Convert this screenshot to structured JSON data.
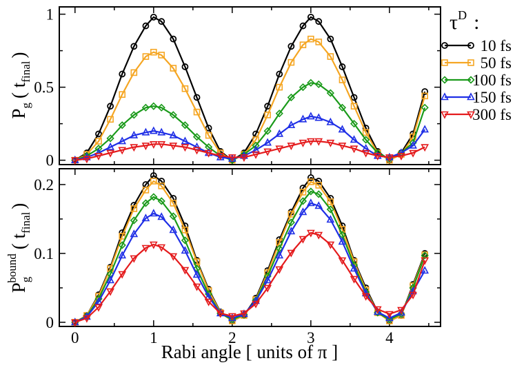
{
  "chart_data": [
    {
      "type": "line",
      "panel": "top",
      "ylabel": {
        "main": "P",
        "sub": "g",
        "paren_open": "( t",
        "paren_sub": "final",
        "paren_close": ")"
      },
      "xlim": [
        -0.2,
        4.65
      ],
      "ylim": [
        -0.03,
        1.05
      ],
      "yticks": [
        0,
        0.5,
        1
      ],
      "ytick_labels": [
        "0",
        "0.5",
        "1"
      ],
      "x": [
        0,
        0.15,
        0.3,
        0.45,
        0.6,
        0.75,
        0.9,
        1.0,
        1.1,
        1.25,
        1.4,
        1.55,
        1.7,
        1.85,
        2.0,
        2.15,
        2.3,
        2.45,
        2.6,
        2.75,
        2.9,
        3.0,
        3.1,
        3.25,
        3.4,
        3.55,
        3.7,
        3.85,
        4.0,
        4.15,
        4.3,
        4.45
      ],
      "series": [
        {
          "name": "10 fs",
          "color": "#000000",
          "marker": "circle",
          "values": [
            0.0,
            0.05,
            0.18,
            0.37,
            0.59,
            0.78,
            0.92,
            0.98,
            0.95,
            0.83,
            0.64,
            0.43,
            0.22,
            0.06,
            0.0,
            0.05,
            0.18,
            0.37,
            0.59,
            0.78,
            0.92,
            0.98,
            0.95,
            0.83,
            0.64,
            0.43,
            0.22,
            0.06,
            0.0,
            0.05,
            0.18,
            0.47
          ]
        },
        {
          "name": "50 fs",
          "color": "#f5a623",
          "marker": "square",
          "values": [
            0.0,
            0.04,
            0.13,
            0.28,
            0.45,
            0.6,
            0.71,
            0.74,
            0.72,
            0.63,
            0.49,
            0.33,
            0.17,
            0.05,
            0.0,
            0.04,
            0.14,
            0.31,
            0.5,
            0.67,
            0.79,
            0.83,
            0.81,
            0.71,
            0.55,
            0.37,
            0.19,
            0.05,
            0.0,
            0.04,
            0.16,
            0.44
          ]
        },
        {
          "name": "100 fs",
          "color": "#1a9a1a",
          "marker": "diamond",
          "values": [
            0.0,
            0.03,
            0.08,
            0.15,
            0.24,
            0.31,
            0.36,
            0.37,
            0.36,
            0.31,
            0.24,
            0.16,
            0.09,
            0.03,
            0.0,
            0.04,
            0.1,
            0.2,
            0.32,
            0.43,
            0.5,
            0.53,
            0.52,
            0.46,
            0.36,
            0.25,
            0.14,
            0.05,
            0.01,
            0.05,
            0.12,
            0.36
          ]
        },
        {
          "name": "150 fs",
          "color": "#1e2ee6",
          "marker": "triangle-up",
          "values": [
            0.0,
            0.02,
            0.05,
            0.09,
            0.13,
            0.17,
            0.19,
            0.2,
            0.19,
            0.17,
            0.13,
            0.09,
            0.05,
            0.02,
            0.01,
            0.03,
            0.07,
            0.12,
            0.18,
            0.24,
            0.28,
            0.3,
            0.29,
            0.26,
            0.21,
            0.14,
            0.08,
            0.03,
            0.02,
            0.05,
            0.1,
            0.21
          ]
        },
        {
          "name": "300 fs",
          "color": "#e41a1c",
          "marker": "triangle-down",
          "values": [
            0.0,
            0.01,
            0.03,
            0.05,
            0.07,
            0.09,
            0.1,
            0.11,
            0.11,
            0.1,
            0.09,
            0.07,
            0.05,
            0.03,
            0.02,
            0.02,
            0.04,
            0.06,
            0.08,
            0.1,
            0.12,
            0.13,
            0.13,
            0.12,
            0.1,
            0.08,
            0.05,
            0.03,
            0.02,
            0.03,
            0.05,
            0.09
          ]
        }
      ]
    },
    {
      "type": "line",
      "panel": "bottom",
      "ylabel": {
        "main": "P",
        "sub": "g",
        "sup": "bound",
        "paren_open": "( t",
        "paren_sub": "final",
        "paren_close": ")"
      },
      "xlabel": "Rabi angle [ units of π ]",
      "xlim": [
        -0.2,
        4.65
      ],
      "ylim": [
        -0.006,
        0.223
      ],
      "yticks": [
        0,
        0.1,
        0.2
      ],
      "ytick_labels": [
        "0",
        "0.1",
        "0.2"
      ],
      "xticks": [
        0,
        1,
        2,
        3,
        4
      ],
      "xtick_labels": [
        "0",
        "1",
        "2",
        "3",
        "4"
      ],
      "x": [
        0,
        0.15,
        0.3,
        0.45,
        0.6,
        0.75,
        0.9,
        1.0,
        1.1,
        1.25,
        1.4,
        1.55,
        1.7,
        1.85,
        2.0,
        2.15,
        2.3,
        2.45,
        2.6,
        2.75,
        2.9,
        3.0,
        3.1,
        3.25,
        3.4,
        3.55,
        3.7,
        3.85,
        4.0,
        4.15,
        4.3,
        4.45
      ],
      "series": [
        {
          "name": "10 fs",
          "color": "#000000",
          "marker": "circle",
          "values": [
            0.0,
            0.01,
            0.04,
            0.08,
            0.13,
            0.17,
            0.2,
            0.213,
            0.205,
            0.18,
            0.14,
            0.09,
            0.048,
            0.015,
            0.002,
            0.01,
            0.035,
            0.075,
            0.12,
            0.16,
            0.195,
            0.21,
            0.205,
            0.18,
            0.14,
            0.09,
            0.05,
            0.015,
            0.002,
            0.01,
            0.055,
            0.1
          ]
        },
        {
          "name": "50 fs",
          "color": "#f5a623",
          "marker": "square",
          "values": [
            0.0,
            0.01,
            0.038,
            0.078,
            0.125,
            0.165,
            0.192,
            0.205,
            0.198,
            0.173,
            0.134,
            0.088,
            0.046,
            0.014,
            0.002,
            0.01,
            0.033,
            0.072,
            0.116,
            0.157,
            0.189,
            0.204,
            0.199,
            0.175,
            0.135,
            0.088,
            0.047,
            0.014,
            0.002,
            0.01,
            0.053,
            0.098
          ]
        },
        {
          "name": "100 fs",
          "color": "#1a9a1a",
          "marker": "diamond",
          "values": [
            0.0,
            0.009,
            0.034,
            0.07,
            0.112,
            0.148,
            0.173,
            0.182,
            0.176,
            0.154,
            0.119,
            0.078,
            0.041,
            0.013,
            0.004,
            0.011,
            0.032,
            0.067,
            0.107,
            0.145,
            0.176,
            0.19,
            0.186,
            0.164,
            0.127,
            0.083,
            0.044,
            0.014,
            0.004,
            0.012,
            0.05,
            0.097
          ]
        },
        {
          "name": "150 fs",
          "color": "#1e2ee6",
          "marker": "triangle-up",
          "values": [
            0.0,
            0.008,
            0.03,
            0.061,
            0.097,
            0.128,
            0.151,
            0.158,
            0.153,
            0.134,
            0.104,
            0.069,
            0.037,
            0.013,
            0.006,
            0.012,
            0.031,
            0.061,
            0.097,
            0.132,
            0.16,
            0.173,
            0.169,
            0.149,
            0.117,
            0.078,
            0.042,
            0.015,
            0.006,
            0.014,
            0.045,
            0.075
          ]
        },
        {
          "name": "300 fs",
          "color": "#e41a1c",
          "marker": "triangle-down",
          "values": [
            0.0,
            0.006,
            0.022,
            0.045,
            0.07,
            0.093,
            0.108,
            0.113,
            0.109,
            0.096,
            0.076,
            0.052,
            0.03,
            0.013,
            0.009,
            0.013,
            0.027,
            0.05,
            0.077,
            0.101,
            0.121,
            0.13,
            0.127,
            0.113,
            0.09,
            0.063,
            0.038,
            0.019,
            0.012,
            0.018,
            0.04,
            0.09
          ]
        }
      ]
    }
  ],
  "legend": {
    "title_main": "τ",
    "title_sup": "D",
    "title_colon": ":",
    "entries": [
      {
        "label": "10 fs",
        "color": "#000000",
        "marker": "circle"
      },
      {
        "label": "50 fs",
        "color": "#f5a623",
        "marker": "square"
      },
      {
        "label": "100 fs",
        "color": "#1a9a1a",
        "marker": "diamond"
      },
      {
        "label": "150 fs",
        "color": "#1e2ee6",
        "marker": "triangle-up"
      },
      {
        "label": "300 fs",
        "color": "#e41a1c",
        "marker": "triangle-down"
      }
    ]
  }
}
